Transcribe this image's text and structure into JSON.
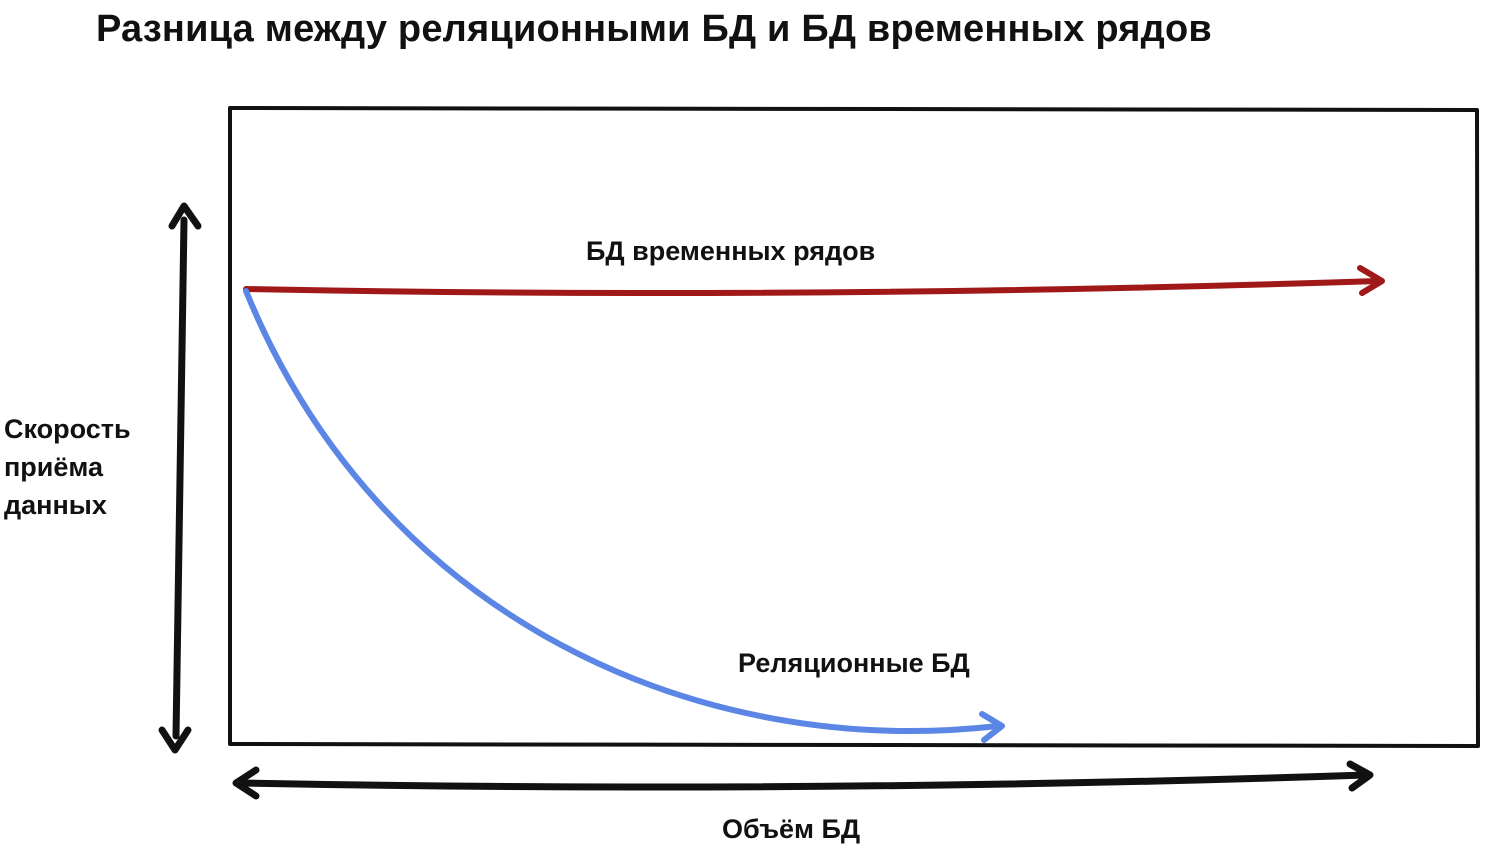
{
  "title": "Разница между реляционными БД и БД временных рядов",
  "y_axis_label": "Скорость приёма данных",
  "x_axis_label": "Объём БД",
  "series": {
    "timeseries": {
      "label": "БД временных рядов",
      "color": "#a01818"
    },
    "relational": {
      "label": "Реляционные БД",
      "color": "#5b86e5"
    }
  },
  "colors": {
    "axis": "#111111",
    "frame": "#111111"
  }
}
